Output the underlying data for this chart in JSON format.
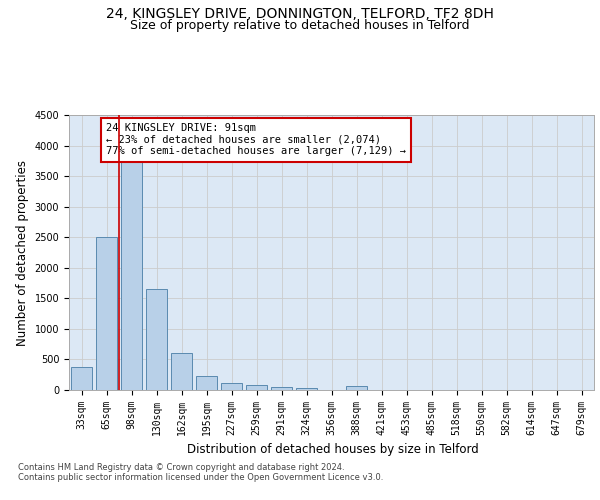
{
  "title_line1": "24, KINGSLEY DRIVE, DONNINGTON, TELFORD, TF2 8DH",
  "title_line2": "Size of property relative to detached houses in Telford",
  "xlabel": "Distribution of detached houses by size in Telford",
  "ylabel": "Number of detached properties",
  "categories": [
    "33sqm",
    "65sqm",
    "98sqm",
    "130sqm",
    "162sqm",
    "195sqm",
    "227sqm",
    "259sqm",
    "291sqm",
    "324sqm",
    "356sqm",
    "388sqm",
    "421sqm",
    "453sqm",
    "485sqm",
    "518sqm",
    "550sqm",
    "582sqm",
    "614sqm",
    "647sqm",
    "679sqm"
  ],
  "values": [
    370,
    2500,
    3750,
    1650,
    600,
    230,
    110,
    75,
    55,
    40,
    0,
    60,
    0,
    0,
    0,
    0,
    0,
    0,
    0,
    0,
    0
  ],
  "bar_color": "#b8d0e8",
  "bar_edge_color": "#5a8ab0",
  "vline_color": "#cc0000",
  "annotation_text": "24 KINGSLEY DRIVE: 91sqm\n← 23% of detached houses are smaller (2,074)\n77% of semi-detached houses are larger (7,129) →",
  "annotation_box_color": "#ffffff",
  "annotation_box_edge": "#cc0000",
  "ylim": [
    0,
    4500
  ],
  "yticks": [
    0,
    500,
    1000,
    1500,
    2000,
    2500,
    3000,
    3500,
    4000,
    4500
  ],
  "grid_color": "#cccccc",
  "bg_color": "#dce8f5",
  "footer_line1": "Contains HM Land Registry data © Crown copyright and database right 2024.",
  "footer_line2": "Contains public sector information licensed under the Open Government Licence v3.0.",
  "title_fontsize": 10,
  "subtitle_fontsize": 9,
  "axis_label_fontsize": 8.5,
  "tick_fontsize": 7,
  "footer_fontsize": 6,
  "annotation_fontsize": 7.5
}
